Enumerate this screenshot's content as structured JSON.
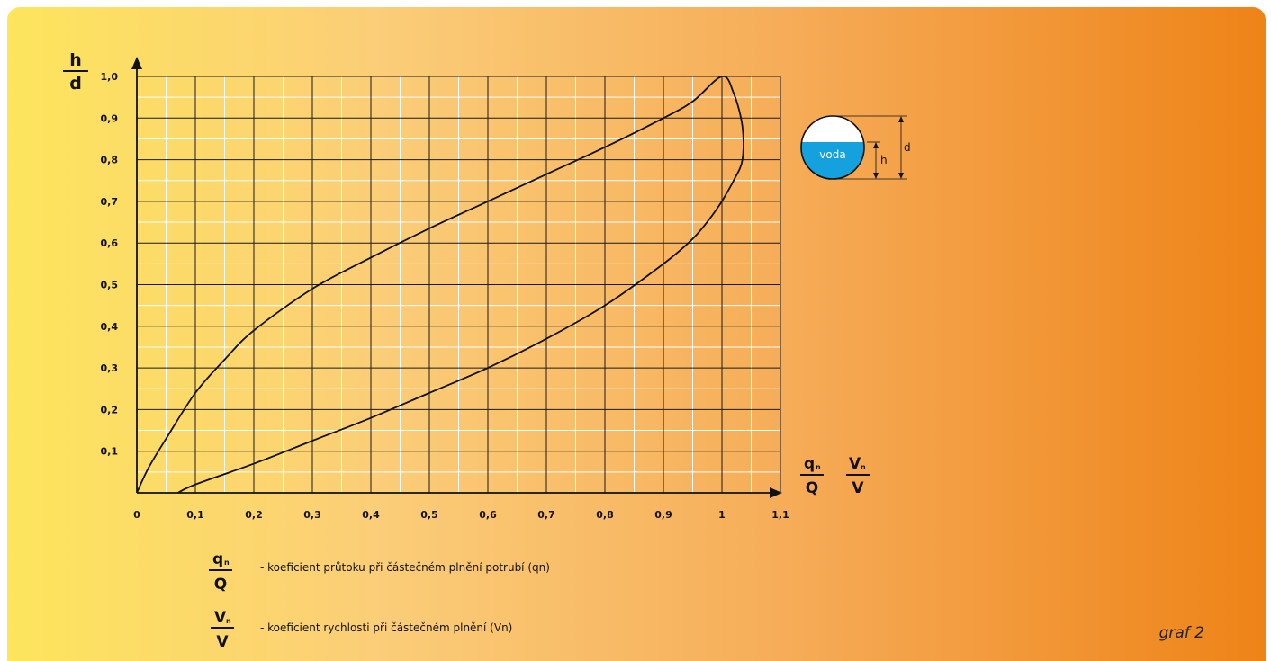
{
  "chart_data": {
    "type": "line",
    "x_ticks": [
      "0",
      "0,1",
      "0,2",
      "0,3",
      "0,4",
      "0,5",
      "0,6",
      "0,7",
      "0,8",
      "0,9",
      "1",
      "1,1"
    ],
    "y_ticks": [
      "0,1",
      "0,2",
      "0,3",
      "0,4",
      "0,5",
      "0,6",
      "0,7",
      "0,8",
      "0,9",
      "1,0"
    ],
    "xlim": [
      0,
      1.1
    ],
    "ylim": [
      0,
      1.0
    ],
    "minor_grid": 0.05,
    "grid": true,
    "y_axis_label": {
      "numerator": "h",
      "denominator": "d"
    },
    "x_axis_label_q": {
      "numerator": "q",
      "subscript": "n",
      "denominator": "Q"
    },
    "x_axis_label_v": {
      "numerator": "V",
      "subscript": "n",
      "denominator": "V"
    },
    "series": [
      {
        "x": [
          0,
          0.02,
          0.05,
          0.1,
          0.15,
          0.2,
          0.3,
          0.4,
          0.5,
          0.6,
          0.7,
          0.8,
          0.9,
          0.95,
          1.0,
          1.02,
          1.035,
          1.035,
          1.02,
          1.0
        ],
        "y": [
          0,
          0.06,
          0.13,
          0.24,
          0.32,
          0.39,
          0.49,
          0.565,
          0.635,
          0.7,
          0.765,
          0.83,
          0.9,
          0.94,
          1.0,
          0.96,
          0.88,
          0.8,
          0.75,
          0.7
        ]
      },
      {
        "x": [
          0.07,
          0.1,
          0.2,
          0.3,
          0.4,
          0.5,
          0.6,
          0.7,
          0.8,
          0.9,
          0.95,
          0.98,
          1.0
        ],
        "y": [
          0,
          0.02,
          0.07,
          0.125,
          0.18,
          0.24,
          0.3,
          0.37,
          0.45,
          0.55,
          0.61,
          0.66,
          0.7
        ]
      }
    ]
  },
  "pipe_diagram": {
    "water_label": "voda",
    "height_label": "h",
    "diameter_label": "d"
  },
  "legend": [
    {
      "numerator": "q",
      "subscript": "n",
      "denominator": "Q",
      "text": "- koeficient průtoku při částečném plnění potrubí (qn)"
    },
    {
      "numerator": "V",
      "subscript": "n",
      "denominator": "V",
      "text": "- koeficient rychlosti při částečném plnění (Vn)"
    }
  ],
  "caption": "graf 2"
}
